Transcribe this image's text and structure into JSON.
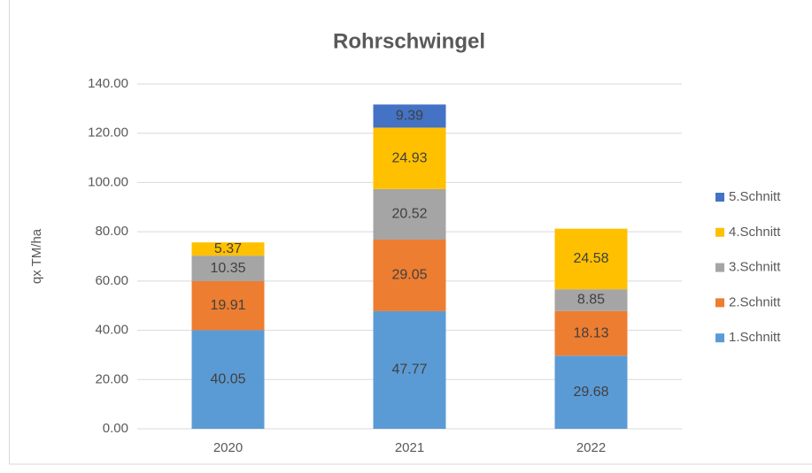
{
  "chart_data": {
    "type": "stacked_bar",
    "title": "Rohrschwingel",
    "y_label": "qx TM/ha",
    "categories": [
      "2020",
      "2021",
      "2022"
    ],
    "series": [
      {
        "name": "1.Schnitt",
        "color": "#5b9bd5",
        "values": [
          40.05,
          47.77,
          29.68
        ]
      },
      {
        "name": "2.Schnitt",
        "color": "#ed7d31",
        "values": [
          19.91,
          29.05,
          18.13
        ]
      },
      {
        "name": "3.Schnitt",
        "color": "#a5a5a5",
        "values": [
          10.35,
          20.52,
          8.85
        ]
      },
      {
        "name": "4.Schnitt",
        "color": "#ffc000",
        "values": [
          5.37,
          24.93,
          24.58
        ]
      },
      {
        "name": "5.Schnitt",
        "color": "#4472c4",
        "values": [
          null,
          9.39,
          null
        ]
      }
    ],
    "ylim": [
      0,
      140
    ],
    "yticks": [
      {
        "value": 0,
        "label": "0.00"
      },
      {
        "value": 20,
        "label": "20.00"
      },
      {
        "value": 40,
        "label": "40.00"
      },
      {
        "value": 60,
        "label": "60.00"
      },
      {
        "value": 80,
        "label": "80.00"
      },
      {
        "value": 100,
        "label": "100.00"
      },
      {
        "value": 120,
        "label": "120.00"
      },
      {
        "value": 140,
        "label": "140.00"
      }
    ],
    "grid": true,
    "legend": "right"
  }
}
